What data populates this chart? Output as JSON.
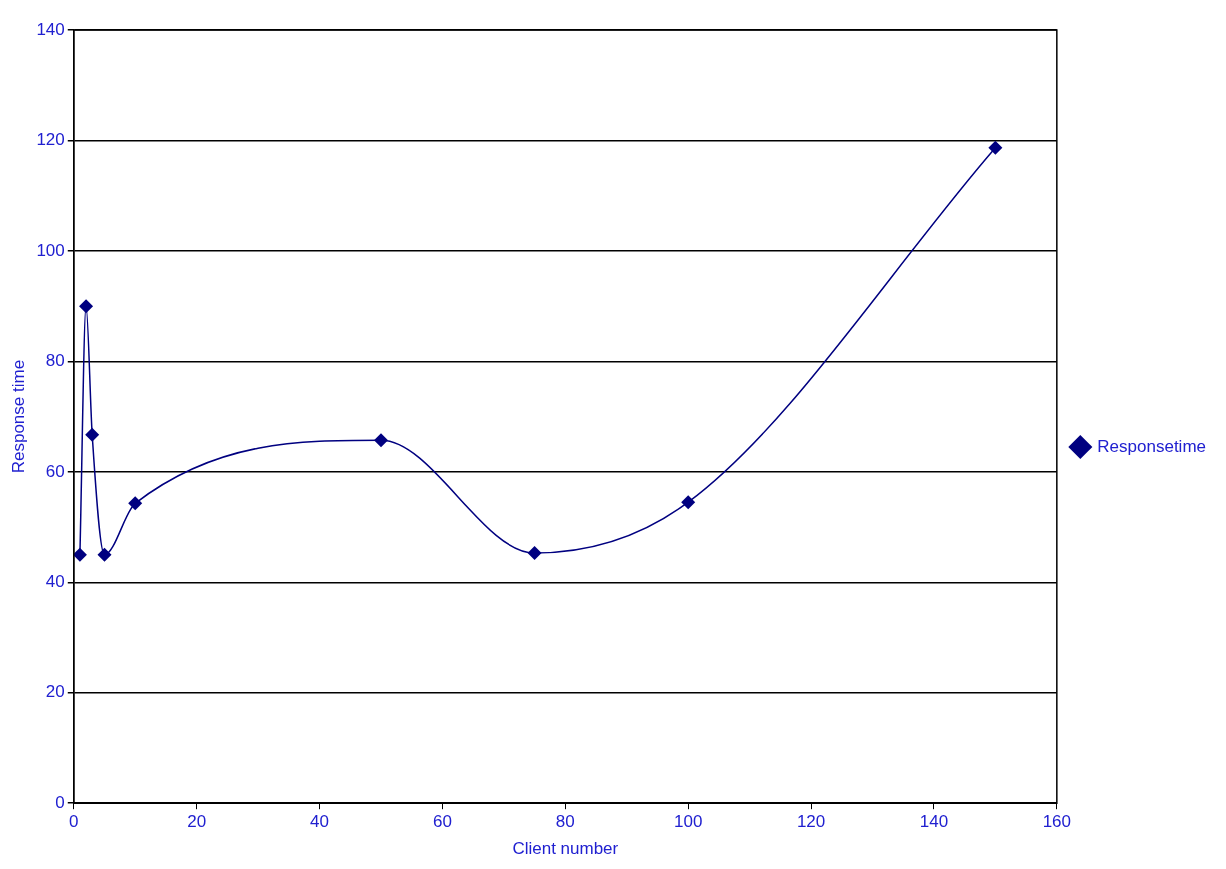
{
  "chart_data": {
    "type": "line",
    "xlabel": "Client number",
    "ylabel": "Response time",
    "x": [
      1,
      2,
      3,
      5,
      10,
      50,
      75,
      100,
      150
    ],
    "series": [
      {
        "name": "Responsetime",
        "color": "#000080",
        "values": [
          45,
          90,
          66.7,
          45,
          54.3,
          65.7,
          45.3,
          54.5,
          118.7
        ]
      }
    ],
    "xlim": [
      0,
      160
    ],
    "xticks": [
      0,
      20,
      40,
      60,
      80,
      100,
      120,
      140,
      160
    ],
    "ylim": [
      0,
      140
    ],
    "yticks": [
      0,
      20,
      40,
      60,
      80,
      100,
      120,
      140
    ],
    "grid": "y",
    "legend": "right",
    "marker": "diamond",
    "line_style": "solid"
  }
}
